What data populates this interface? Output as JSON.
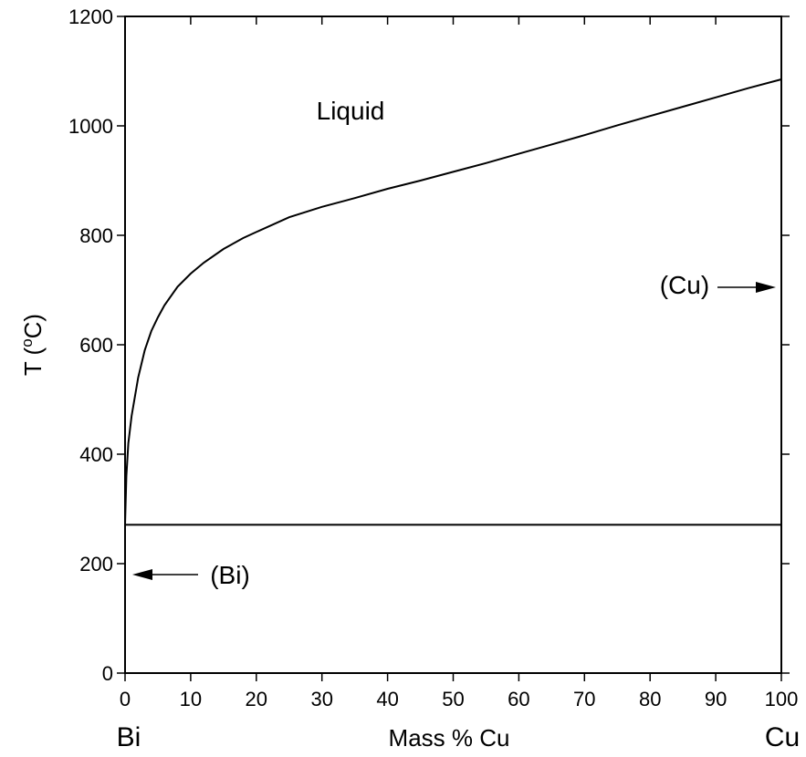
{
  "chart_data": {
    "type": "line",
    "title": "",
    "xlabel": "Mass % Cu",
    "ylabel_text": "T (",
    "ylabel_sup": "o",
    "ylabel_unit": "C)",
    "xlim": [
      0,
      100
    ],
    "ylim": [
      0,
      1200
    ],
    "x_ticks": [
      "0",
      "10",
      "20",
      "30",
      "40",
      "50",
      "60",
      "70",
      "80",
      "90",
      "100"
    ],
    "y_ticks": [
      "0",
      "200",
      "400",
      "600",
      "800",
      "1000",
      "1200"
    ],
    "grid": false,
    "endpoint_labels": {
      "left": "Bi",
      "right": "Cu"
    },
    "series": [
      {
        "role": "liquidus",
        "x": [
          0,
          0.2,
          0.5,
          1,
          2,
          3,
          4,
          5,
          6,
          8,
          10,
          12,
          15,
          18,
          20,
          25,
          30,
          35,
          40,
          45,
          50,
          55,
          60,
          65,
          70,
          75,
          80,
          85,
          90,
          95,
          100
        ],
        "y": [
          271,
          360,
          420,
          470,
          540,
          590,
          625,
          650,
          672,
          706,
          730,
          750,
          775,
          795,
          806,
          833,
          852,
          868,
          885,
          900,
          916,
          932,
          949,
          966,
          983,
          1001,
          1018,
          1035,
          1052,
          1069,
          1085
        ]
      },
      {
        "role": "eutectic",
        "x": [
          0,
          100
        ],
        "y": [
          271,
          271
        ]
      }
    ],
    "annotations": [
      {
        "text": "Liquid",
        "x": 30,
        "y": 1030
      },
      {
        "text": "(Cu)",
        "x": 86,
        "y": 706,
        "arrow": "right"
      },
      {
        "text": "(Bi)",
        "x": 12,
        "y": 182,
        "arrow": "left"
      }
    ]
  }
}
